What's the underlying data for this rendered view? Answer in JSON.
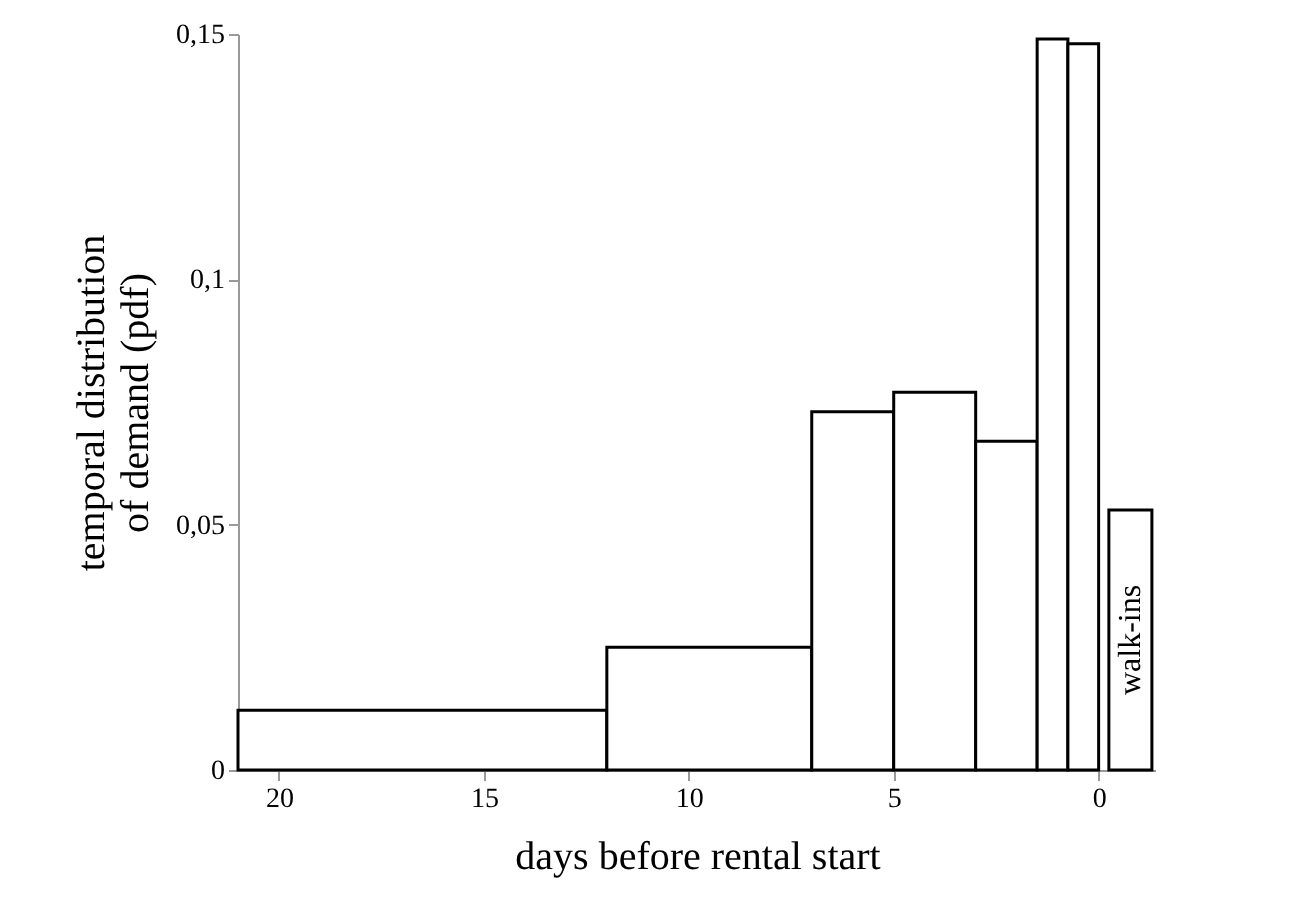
{
  "chart_data": {
    "type": "histogram",
    "xlabel": "days before rental start",
    "ylabel": "temporal distribution of demand (pdf)",
    "color": "#000000",
    "bins": [
      21,
      12,
      7,
      5,
      3,
      1.5,
      0.75,
      0,
      -0.25,
      -1.3
    ],
    "values": [
      0.0122,
      0.025,
      0.073,
      0.077,
      0.067,
      0.149,
      0.148,
      null,
      0.053
    ],
    "annotations": [
      "walk-ins"
    ],
    "xlim": [
      21,
      -1.4
    ],
    "ylim": [
      0,
      0.15
    ],
    "xticks": [
      20,
      15,
      10,
      5,
      0
    ],
    "yticks": [
      0,
      {
        "value": 0.05,
        "label": "0,05"
      },
      {
        "value": 0.1,
        "label": "0,1"
      },
      {
        "value": 0.15,
        "label": "0,15"
      }
    ],
    "grid": false
  }
}
